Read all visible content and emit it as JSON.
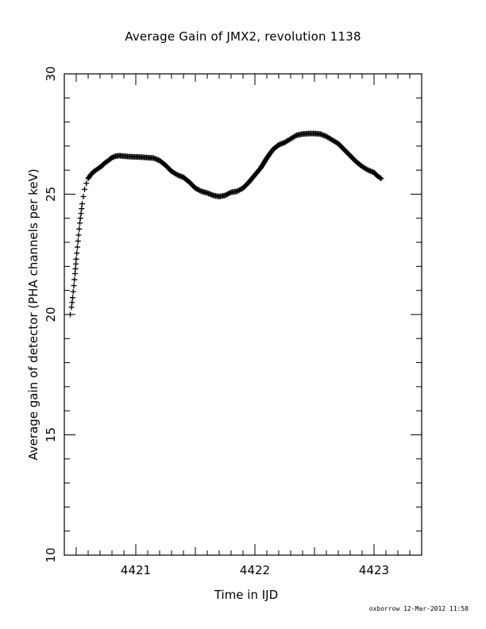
{
  "chart_data": {
    "type": "scatter",
    "title": "Average Gain of JMX2, revolution 1138",
    "xlabel": "Time in IJD",
    "ylabel": "Average gain of detector (PHA channels per keV)",
    "xlim": [
      4420.4,
      4423.4
    ],
    "ylim": [
      10,
      30
    ],
    "xticks_major": [
      4421,
      4422,
      4423
    ],
    "yticks_major": [
      10,
      15,
      20,
      25,
      30
    ],
    "x_minor_step": 0.1,
    "y_minor_step": 1,
    "marker": "plus",
    "grid": false,
    "footer": "oxborrow 12-Mar-2012 11:58",
    "series": [
      {
        "points": [
          [
            4420.45,
            20.0
          ],
          [
            4420.46,
            20.3
          ],
          [
            4420.47,
            20.7
          ],
          [
            4420.48,
            21.2
          ],
          [
            4420.49,
            21.7
          ],
          [
            4420.5,
            22.3
          ],
          [
            4420.51,
            22.8
          ],
          [
            4420.52,
            23.3
          ],
          [
            4420.53,
            23.8
          ],
          [
            4420.54,
            24.2
          ],
          [
            4420.55,
            24.6
          ],
          [
            4420.56,
            24.9
          ],
          [
            4420.57,
            25.2
          ],
          [
            4420.585,
            25.45
          ],
          [
            4420.6,
            25.65
          ],
          [
            4420.62,
            25.8
          ],
          [
            4420.65,
            25.95
          ],
          [
            4420.68,
            26.05
          ],
          [
            4420.71,
            26.15
          ],
          [
            4420.74,
            26.3
          ],
          [
            4420.77,
            26.4
          ],
          [
            4420.8,
            26.52
          ],
          [
            4420.83,
            26.58
          ],
          [
            4420.86,
            26.6
          ],
          [
            4420.9,
            26.58
          ],
          [
            4420.95,
            26.56
          ],
          [
            4421.0,
            26.55
          ],
          [
            4421.05,
            26.54
          ],
          [
            4421.1,
            26.52
          ],
          [
            4421.15,
            26.5
          ],
          [
            4421.2,
            26.4
          ],
          [
            4421.25,
            26.2
          ],
          [
            4421.3,
            25.95
          ],
          [
            4421.35,
            25.8
          ],
          [
            4421.4,
            25.7
          ],
          [
            4421.45,
            25.5
          ],
          [
            4421.5,
            25.25
          ],
          [
            4421.55,
            25.12
          ],
          [
            4421.6,
            25.05
          ],
          [
            4421.65,
            24.95
          ],
          [
            4421.7,
            24.9
          ],
          [
            4421.75,
            24.95
          ],
          [
            4421.8,
            25.08
          ],
          [
            4421.85,
            25.12
          ],
          [
            4421.9,
            25.25
          ],
          [
            4421.95,
            25.5
          ],
          [
            4422.0,
            25.8
          ],
          [
            4422.05,
            26.1
          ],
          [
            4422.1,
            26.5
          ],
          [
            4422.15,
            26.85
          ],
          [
            4422.2,
            27.05
          ],
          [
            4422.25,
            27.15
          ],
          [
            4422.3,
            27.3
          ],
          [
            4422.35,
            27.45
          ],
          [
            4422.4,
            27.5
          ],
          [
            4422.45,
            27.52
          ],
          [
            4422.5,
            27.52
          ],
          [
            4422.55,
            27.5
          ],
          [
            4422.6,
            27.4
          ],
          [
            4422.65,
            27.25
          ],
          [
            4422.7,
            27.1
          ],
          [
            4422.75,
            26.85
          ],
          [
            4422.8,
            26.6
          ],
          [
            4422.85,
            26.35
          ],
          [
            4422.9,
            26.15
          ],
          [
            4422.95,
            26.0
          ],
          [
            4423.0,
            25.9
          ],
          [
            4423.03,
            25.75
          ],
          [
            4423.06,
            25.65
          ]
        ]
      }
    ]
  }
}
